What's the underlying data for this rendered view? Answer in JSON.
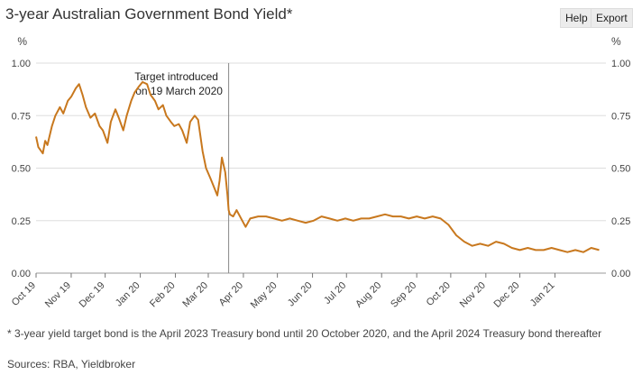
{
  "header": {
    "title": "3-year Australian Government Bond Yield*",
    "help_label": "Help",
    "export_label": "Export"
  },
  "footnote": "* 3-year yield target bond is the April 2023 Treasury bond until 20 October 2020, and the April 2024 Treasury bond thereafter",
  "sources": "Sources: RBA, Yieldbroker",
  "colors": {
    "series": "#c8781e",
    "grid": "#dddddd",
    "axis": "#555555",
    "marker": "#888888"
  },
  "chart_data": {
    "type": "line",
    "title": "3-year Australian Government Bond Yield*",
    "y_unit_left": "%",
    "y_unit_right": "%",
    "ylim": [
      0,
      1.0
    ],
    "yticks": [
      0.0,
      0.25,
      0.5,
      0.75,
      1.0
    ],
    "ytick_labels": [
      "0.00",
      "0.25",
      "0.50",
      "0.75",
      "1.00"
    ],
    "xlim": [
      "2019-10-01",
      "2021-02-15"
    ],
    "xticks": [
      {
        "date": "2019-10-01",
        "label": "Oct 19"
      },
      {
        "date": "2019-11-01",
        "label": "Nov 19"
      },
      {
        "date": "2019-12-01",
        "label": "Dec 19"
      },
      {
        "date": "2020-01-01",
        "label": "Jan 20"
      },
      {
        "date": "2020-02-01",
        "label": "Feb 20"
      },
      {
        "date": "2020-03-01",
        "label": "Mar 20"
      },
      {
        "date": "2020-04-01",
        "label": "Apr 20"
      },
      {
        "date": "2020-05-01",
        "label": "May 20"
      },
      {
        "date": "2020-06-01",
        "label": "Jun 20"
      },
      {
        "date": "2020-07-01",
        "label": "Jul 20"
      },
      {
        "date": "2020-08-01",
        "label": "Aug 20"
      },
      {
        "date": "2020-09-01",
        "label": "Sep 20"
      },
      {
        "date": "2020-10-01",
        "label": "Oct 20"
      },
      {
        "date": "2020-11-01",
        "label": "Nov 20"
      },
      {
        "date": "2020-12-01",
        "label": "Dec 20"
      },
      {
        "date": "2021-01-01",
        "label": "Jan 21"
      }
    ],
    "annotation": {
      "date": "2020-03-19",
      "line1": "Target introduced",
      "line2": "on 19 March 2020"
    },
    "grid": "horizontal",
    "series": [
      {
        "x": [
          "2019-10-01",
          "2019-10-03",
          "2019-10-07",
          "2019-10-09",
          "2019-10-11",
          "2019-10-15",
          "2019-10-18",
          "2019-10-22",
          "2019-10-25",
          "2019-10-29",
          "2019-11-01",
          "2019-11-05",
          "2019-11-08",
          "2019-11-11",
          "2019-11-14",
          "2019-11-18",
          "2019-11-22",
          "2019-11-26",
          "2019-11-29",
          "2019-12-03",
          "2019-12-06",
          "2019-12-10",
          "2019-12-13",
          "2019-12-17",
          "2019-12-20",
          "2019-12-24",
          "2019-12-27",
          "2019-12-31",
          "2020-01-03",
          "2020-01-07",
          "2020-01-10",
          "2020-01-14",
          "2020-01-17",
          "2020-01-21",
          "2020-01-24",
          "2020-01-28",
          "2020-01-31",
          "2020-02-04",
          "2020-02-07",
          "2020-02-11",
          "2020-02-14",
          "2020-02-18",
          "2020-02-21",
          "2020-02-25",
          "2020-02-28",
          "2020-03-03",
          "2020-03-06",
          "2020-03-09",
          "2020-03-11",
          "2020-03-13",
          "2020-03-16",
          "2020-03-18",
          "2020-03-19",
          "2020-03-20",
          "2020-03-23",
          "2020-03-26",
          "2020-03-31",
          "2020-04-03",
          "2020-04-07",
          "2020-04-14",
          "2020-04-21",
          "2020-04-28",
          "2020-05-05",
          "2020-05-12",
          "2020-05-19",
          "2020-05-26",
          "2020-06-02",
          "2020-06-09",
          "2020-06-16",
          "2020-06-23",
          "2020-06-30",
          "2020-07-07",
          "2020-07-14",
          "2020-07-21",
          "2020-07-28",
          "2020-08-04",
          "2020-08-11",
          "2020-08-18",
          "2020-08-25",
          "2020-09-01",
          "2020-09-08",
          "2020-09-15",
          "2020-09-22",
          "2020-09-29",
          "2020-10-06",
          "2020-10-13",
          "2020-10-20",
          "2020-10-27",
          "2020-11-03",
          "2020-11-10",
          "2020-11-17",
          "2020-11-24",
          "2020-12-01",
          "2020-12-08",
          "2020-12-15",
          "2020-12-22",
          "2020-12-29",
          "2021-01-05",
          "2021-01-12",
          "2021-01-19",
          "2021-01-26",
          "2021-02-02",
          "2021-02-09"
        ],
        "y": [
          0.65,
          0.6,
          0.57,
          0.63,
          0.61,
          0.7,
          0.75,
          0.79,
          0.76,
          0.82,
          0.84,
          0.88,
          0.9,
          0.85,
          0.79,
          0.74,
          0.76,
          0.7,
          0.68,
          0.62,
          0.72,
          0.78,
          0.74,
          0.68,
          0.75,
          0.82,
          0.86,
          0.89,
          0.91,
          0.9,
          0.85,
          0.82,
          0.78,
          0.8,
          0.75,
          0.72,
          0.7,
          0.71,
          0.68,
          0.62,
          0.72,
          0.75,
          0.73,
          0.58,
          0.5,
          0.45,
          0.41,
          0.37,
          0.44,
          0.55,
          0.48,
          0.37,
          0.3,
          0.28,
          0.27,
          0.3,
          0.25,
          0.22,
          0.26,
          0.27,
          0.27,
          0.26,
          0.25,
          0.26,
          0.25,
          0.24,
          0.25,
          0.27,
          0.26,
          0.25,
          0.26,
          0.25,
          0.26,
          0.26,
          0.27,
          0.28,
          0.27,
          0.27,
          0.26,
          0.27,
          0.26,
          0.27,
          0.26,
          0.23,
          0.18,
          0.15,
          0.13,
          0.14,
          0.13,
          0.15,
          0.14,
          0.12,
          0.11,
          0.12,
          0.11,
          0.11,
          0.12,
          0.11,
          0.1,
          0.11,
          0.1,
          0.12,
          0.11
        ]
      }
    ]
  }
}
